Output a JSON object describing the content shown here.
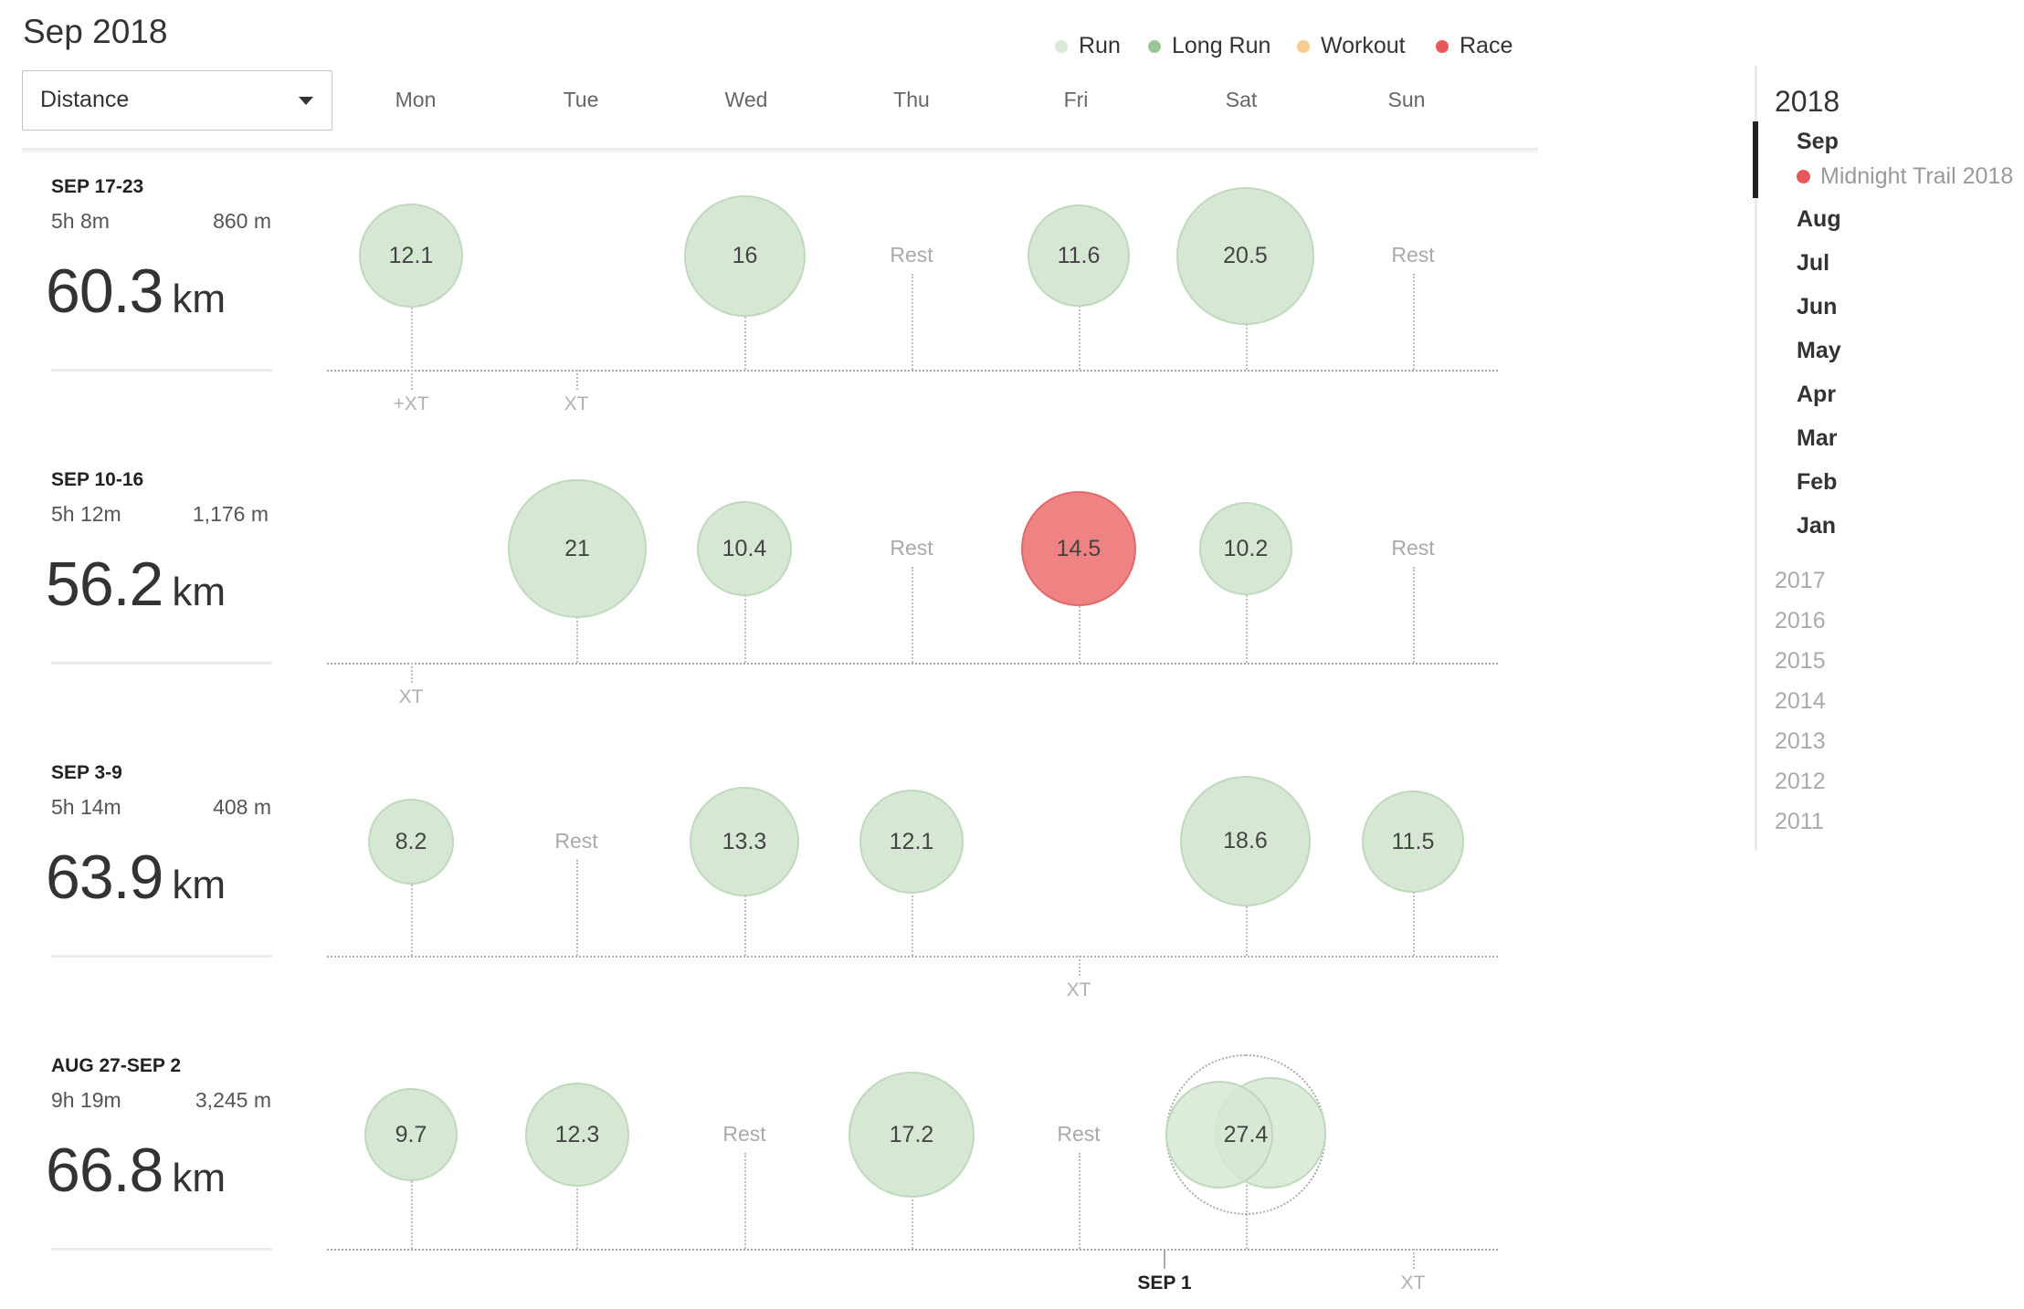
{
  "title": "Sep 2018",
  "metric_select": {
    "value": "Distance"
  },
  "legend": [
    {
      "label": "Run",
      "color": "#d9ead7"
    },
    {
      "label": "Long Run",
      "color": "#9cc598"
    },
    {
      "label": "Workout",
      "color": "#f7cd8d"
    },
    {
      "label": "Race",
      "color": "#e8585a"
    }
  ],
  "days": [
    "Mon",
    "Tue",
    "Wed",
    "Thu",
    "Fri",
    "Sat",
    "Sun"
  ],
  "weeks": [
    {
      "range": "SEP 17-23",
      "duration": "5h 8m",
      "elevation": "860 m",
      "distance": "60.3",
      "unit": "km",
      "days": [
        {
          "run": "12.1",
          "type": "run"
        },
        {
          "run": null
        },
        {
          "run": "16",
          "type": "run"
        },
        {
          "rest": "Rest"
        },
        {
          "run": "11.6",
          "type": "run"
        },
        {
          "run": "20.5",
          "type": "run"
        },
        {
          "rest": "Rest"
        }
      ],
      "xt": [
        {
          "day": 0,
          "label": "+XT"
        },
        {
          "day": 1,
          "label": "XT"
        }
      ]
    },
    {
      "range": "SEP 10-16",
      "duration": "5h 12m",
      "elevation": "1,176 m",
      "distance": "56.2",
      "unit": "km",
      "days": [
        {
          "run": null
        },
        {
          "run": "21",
          "type": "run"
        },
        {
          "run": "10.4",
          "type": "run"
        },
        {
          "rest": "Rest"
        },
        {
          "run": "14.5",
          "type": "race"
        },
        {
          "run": "10.2",
          "type": "run"
        },
        {
          "rest": "Rest"
        }
      ],
      "xt": [
        {
          "day": 0,
          "label": "XT"
        }
      ]
    },
    {
      "range": "SEP 3-9",
      "duration": "5h 14m",
      "elevation": "408 m",
      "distance": "63.9",
      "unit": "km",
      "days": [
        {
          "run": "8.2",
          "type": "run"
        },
        {
          "rest": "Rest"
        },
        {
          "run": "13.3",
          "type": "run"
        },
        {
          "run": "12.1",
          "type": "run"
        },
        {
          "run": null
        },
        {
          "run": "18.6",
          "type": "run"
        },
        {
          "run": "11.5",
          "type": "run"
        }
      ],
      "xt": [
        {
          "day": 4,
          "label": "XT"
        }
      ]
    },
    {
      "range": "AUG 27-SEP 2",
      "duration": "9h 19m",
      "elevation": "3,245 m",
      "distance": "66.8",
      "unit": "km",
      "days": [
        {
          "run": "9.7",
          "type": "run"
        },
        {
          "run": "12.3",
          "type": "run"
        },
        {
          "rest": "Rest"
        },
        {
          "run": "17.2",
          "type": "run"
        },
        {
          "rest": "Rest"
        },
        {
          "run": "27.4",
          "type": "run",
          "multi": true
        },
        {
          "run": null
        }
      ],
      "xt": [
        {
          "day": 6,
          "label": "XT"
        }
      ],
      "marker": "SEP 1"
    }
  ],
  "sidebar": {
    "year": "2018",
    "months": [
      "Sep",
      "Aug",
      "Jul",
      "Jun",
      "May",
      "Apr",
      "Mar",
      "Feb",
      "Jan"
    ],
    "active_month": "Sep",
    "race": "Midnight Trail 2018",
    "years": [
      "2017",
      "2016",
      "2015",
      "2014",
      "2013",
      "2012",
      "2011"
    ]
  }
}
